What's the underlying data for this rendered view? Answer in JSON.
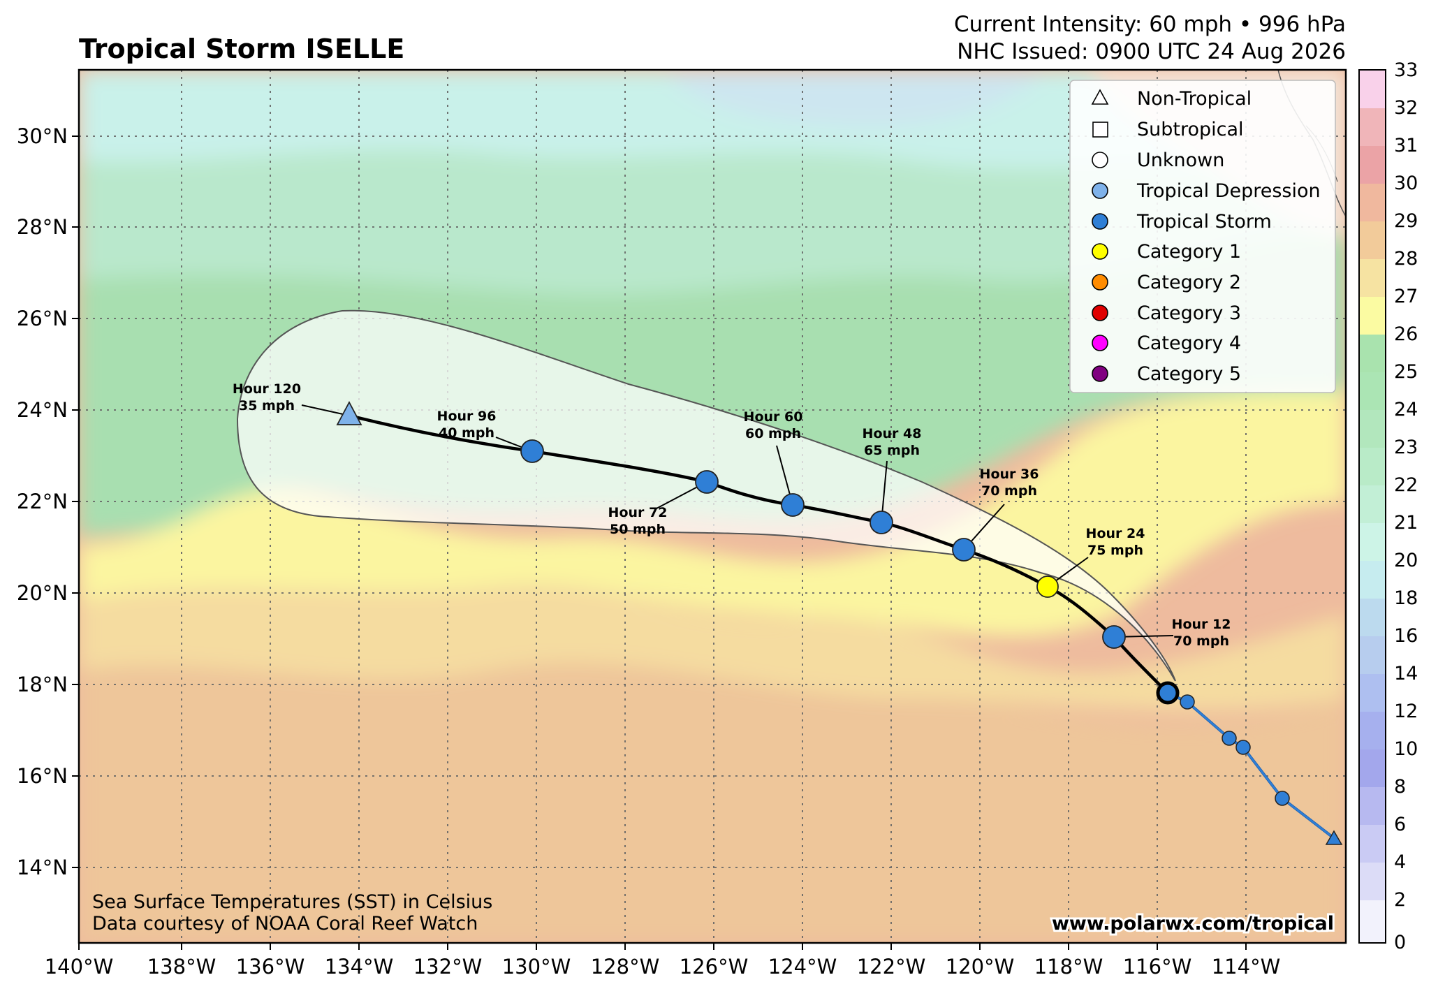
{
  "header": {
    "title": "Tropical Storm ISELLE",
    "intensity": "Current Intensity: 60 mph • 996 hPa",
    "issued": "NHC Issued: 0900 UTC 24 Aug 2026"
  },
  "axes": {
    "lon_ticks": [
      "140°W",
      "138°W",
      "136°W",
      "134°W",
      "132°W",
      "130°W",
      "128°W",
      "126°W",
      "124°W",
      "122°W",
      "120°W",
      "118°W",
      "116°W",
      "114°W"
    ],
    "lat_ticks": [
      "30°N",
      "28°N",
      "26°N",
      "24°N",
      "22°N",
      "20°N",
      "18°N",
      "16°N",
      "14°N"
    ]
  },
  "legend": {
    "items": [
      {
        "label": "Non-Tropical",
        "shape": "triangle",
        "color": "#ffffff"
      },
      {
        "label": "Subtropical",
        "shape": "square",
        "color": "#ffffff"
      },
      {
        "label": "Unknown",
        "shape": "circle",
        "color": "#ffffff"
      },
      {
        "label": "Tropical Depression",
        "shape": "circle",
        "color": "#7fb2ea"
      },
      {
        "label": "Tropical Storm",
        "shape": "circle",
        "color": "#2f7fd6"
      },
      {
        "label": "Category 1",
        "shape": "circle",
        "color": "#ffff00"
      },
      {
        "label": "Category 2",
        "shape": "circle",
        "color": "#ff8c00"
      },
      {
        "label": "Category 3",
        "shape": "circle",
        "color": "#e00000"
      },
      {
        "label": "Category 4",
        "shape": "circle",
        "color": "#ff00ff"
      },
      {
        "label": "Category 5",
        "shape": "circle",
        "color": "#800080"
      }
    ]
  },
  "forecast_points": [
    {
      "hour": "Hour 12",
      "wind": "70 mph"
    },
    {
      "hour": "Hour 24",
      "wind": "75 mph"
    },
    {
      "hour": "Hour 36",
      "wind": "70 mph"
    },
    {
      "hour": "Hour 48",
      "wind": "65 mph"
    },
    {
      "hour": "Hour 60",
      "wind": "60 mph"
    },
    {
      "hour": "Hour 72",
      "wind": "50 mph"
    },
    {
      "hour": "Hour 96",
      "wind": "40 mph"
    },
    {
      "hour": "Hour 120",
      "wind": "35 mph"
    }
  ],
  "colorbar": {
    "ticks": [
      "33",
      "32",
      "31",
      "30",
      "29",
      "28",
      "27",
      "26",
      "25",
      "24",
      "23",
      "22",
      "21",
      "20",
      "18",
      "16",
      "14",
      "12",
      "10",
      "8",
      "6",
      "4",
      "2",
      "0"
    ]
  },
  "footer": {
    "sst_line1": "Sea Surface Temperatures (SST) in Celsius",
    "sst_line2": "Data courtesy of NOAA Coral Reef Watch",
    "url": "www.polarwx.com/tropical"
  }
}
